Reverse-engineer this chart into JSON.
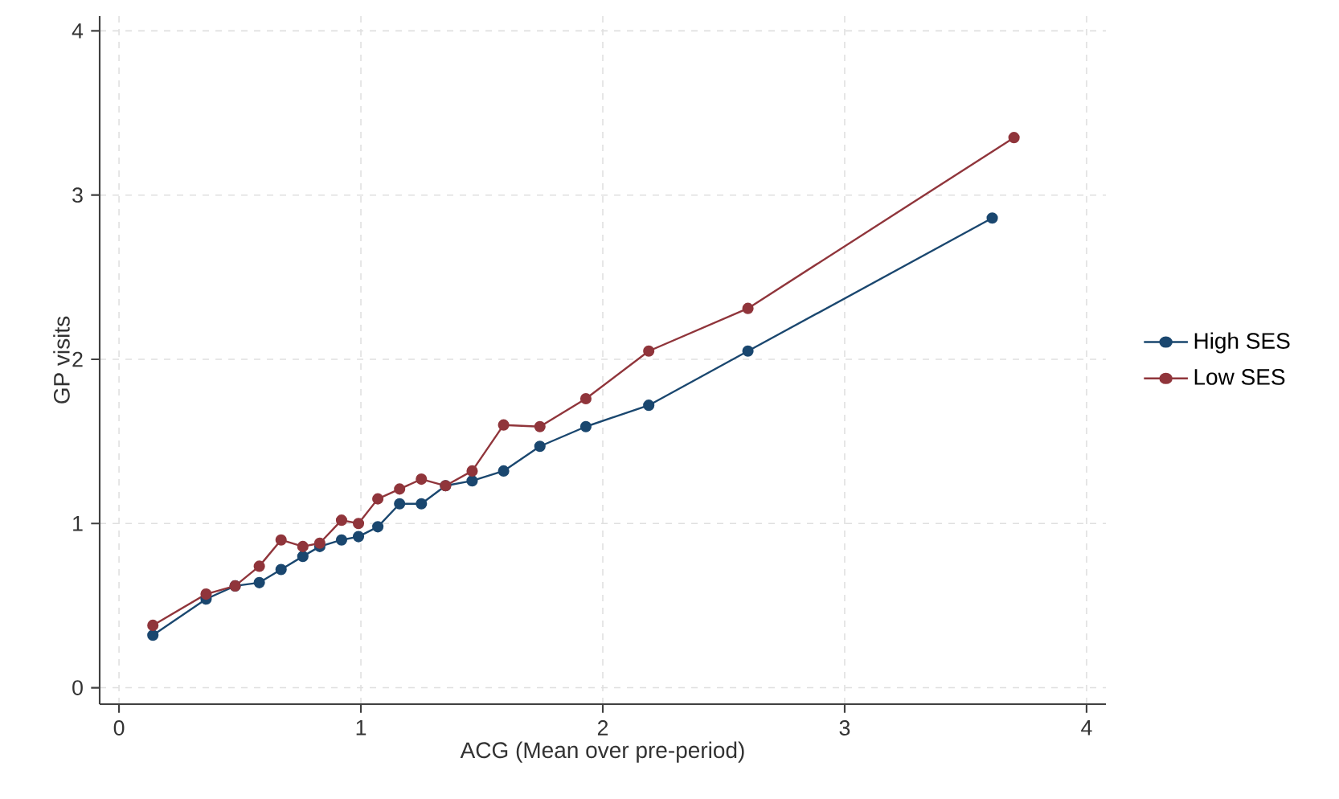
{
  "chart_data": {
    "type": "line",
    "xlabel": "ACG (Mean over pre-period)",
    "ylabel": "GP visits",
    "xlim": [
      -0.08,
      4.08
    ],
    "ylim": [
      -0.1,
      4.09
    ],
    "xticks": [
      0,
      1,
      2,
      3,
      4
    ],
    "yticks": [
      0,
      1,
      2,
      3,
      4
    ],
    "grid": true,
    "legend": "right",
    "marker": "circle",
    "line_style": "solid",
    "series": [
      {
        "name": "High SES",
        "color": "#1a476f",
        "x": [
          0.14,
          0.36,
          0.48,
          0.58,
          0.67,
          0.76,
          0.83,
          0.92,
          0.99,
          1.07,
          1.16,
          1.25,
          1.35,
          1.46,
          1.59,
          1.74,
          1.93,
          2.19,
          2.6,
          3.61
        ],
        "values": [
          0.32,
          0.54,
          0.62,
          0.64,
          0.72,
          0.8,
          0.86,
          0.9,
          0.92,
          0.98,
          1.12,
          1.12,
          1.23,
          1.26,
          1.32,
          1.47,
          1.59,
          1.72,
          2.05,
          2.86
        ]
      },
      {
        "name": "Low SES",
        "color": "#90353b",
        "x": [
          0.14,
          0.36,
          0.48,
          0.58,
          0.67,
          0.76,
          0.83,
          0.92,
          0.99,
          1.07,
          1.16,
          1.25,
          1.35,
          1.46,
          1.59,
          1.74,
          1.93,
          2.19,
          2.6,
          3.7
        ],
        "values": [
          0.38,
          0.57,
          0.62,
          0.74,
          0.9,
          0.86,
          0.88,
          1.02,
          1.0,
          1.15,
          1.21,
          1.27,
          1.23,
          1.32,
          1.6,
          1.59,
          1.76,
          2.05,
          2.31,
          3.35
        ]
      }
    ]
  }
}
